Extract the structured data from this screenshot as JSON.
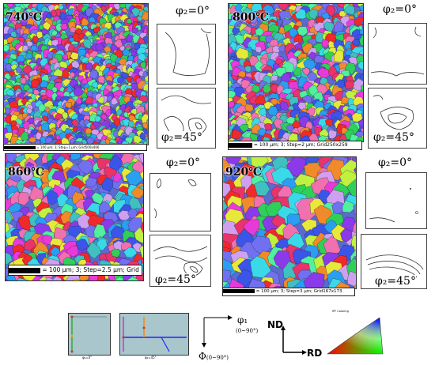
{
  "panels": [
    {
      "temp": "740℃",
      "phi_top": "φ₂=0°",
      "phi_bottom": "φ₂=45°",
      "scalebar": "= 100 μm; 3; Step=1 μm; Grid500x466"
    },
    {
      "temp": "800℃",
      "phi_top": "φ₂=0°",
      "phi_bottom": "φ₂=45°",
      "scalebar": "= 100 μm; 3; Step=2 μm; Grid250x259"
    },
    {
      "temp": "860℃",
      "phi_top": "φ₂=0°",
      "phi_bottom": "φ₂=45°",
      "scalebar": "= 100 μm; 3; Step=2.5 μm; Grid"
    },
    {
      "temp": "920℃",
      "phi_top": "φ₂=0°",
      "phi_bottom": "φ₂=45°",
      "scalebar": "= 100 μm; 3; Step=3 μm; Grid167x173"
    }
  ],
  "key": {
    "phi1": "φ₁",
    "phi1_range": "(0~90°)",
    "Phi": "Φ",
    "Phi_range": "(0~90°)",
    "nd": "ND",
    "rd": "RD",
    "key_left_label": "φ₂=0°",
    "key_right_label": "φ₂=45°",
    "ipf_label": "IPF Coloring"
  },
  "colors": {
    "grain_palette": [
      "#e8336b",
      "#3a55e8",
      "#2fd05a",
      "#e8e83a",
      "#e83ad9",
      "#3ad9e8",
      "#f08a2a",
      "#8a3ae8",
      "#2a9ef0",
      "#f02a2a",
      "#50f0a0",
      "#c0f040",
      "#f070b0",
      "#7070f0",
      "#40c0c0",
      "#d0a0f0"
    ],
    "key_fill": "#a8c6cc"
  }
}
